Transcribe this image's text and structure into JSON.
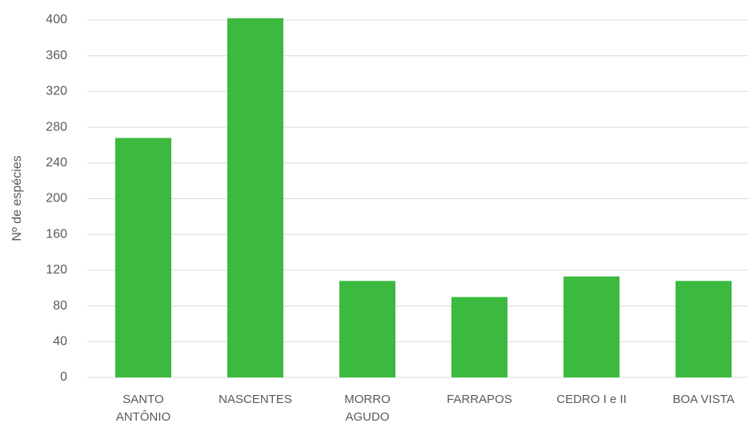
{
  "chart_data": {
    "type": "bar",
    "y_label": "Nº de espécies",
    "categories": [
      "SANTO ANTÔNIO",
      "NASCENTES",
      "MORRO AGUDO",
      "FARRAPOS",
      "CEDRO I e II",
      "BOA VISTA"
    ],
    "values": [
      268,
      402,
      108,
      90,
      113,
      108
    ],
    "color": "#3cb93f",
    "ylim": [
      0,
      400
    ],
    "yticks": [
      0,
      40,
      80,
      120,
      160,
      200,
      240,
      280,
      320,
      360,
      400
    ],
    "grid": true
  }
}
